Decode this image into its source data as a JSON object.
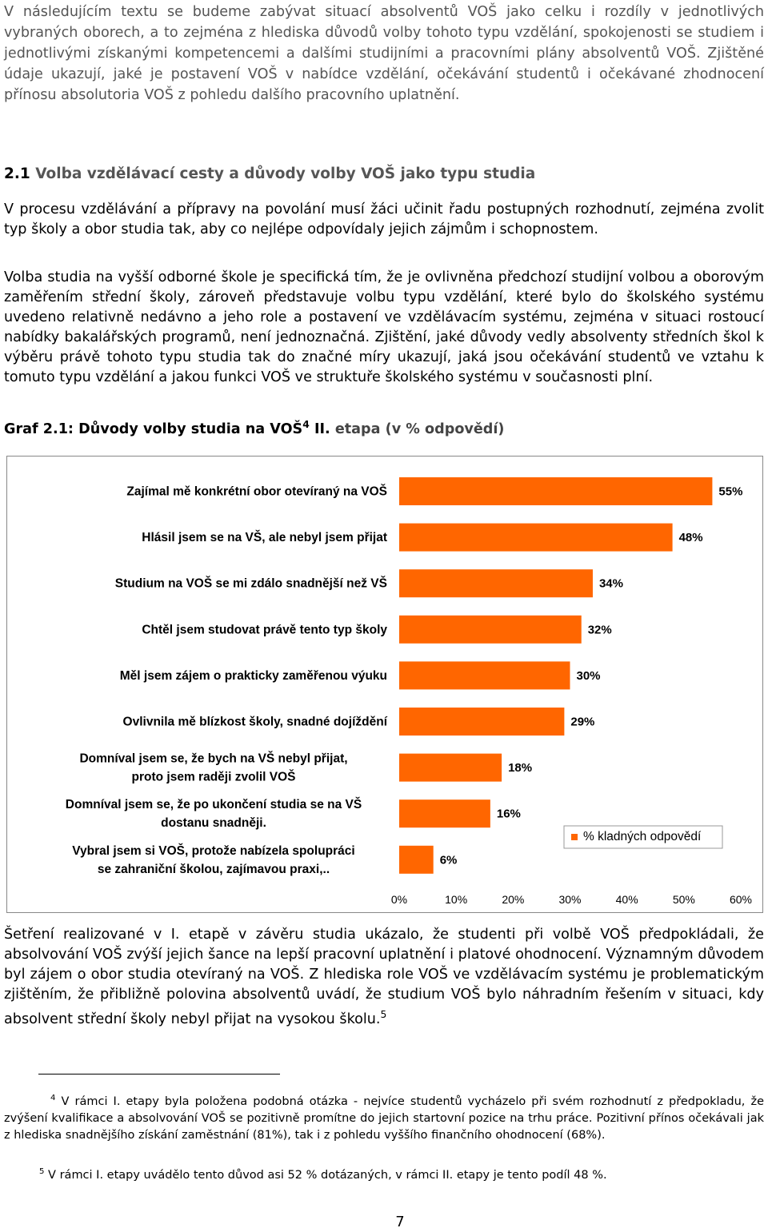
{
  "intro": "V následujícím textu se budeme zabývat situací absolventů VOŠ jako celku i rozdíly v jednotlivých vybraných oborech, a to zejména z hlediska důvodů volby tohoto typu vzdělání, spokojenosti se studiem i jednotlivými získanými kompetencemi a dalšími studijními a pracovními plány absolventů VOŠ. Zjištěné údaje ukazují, jaké je postavení VOŠ v nabídce vzdělání, očekávání studentů i očekávané zhodnocení přínosu absolutoria VOŠ z pohledu dalšího pracovního uplatnění.",
  "section": {
    "number": "2.1",
    "title": "Volba vzdělávací cesty a důvody volby VOŠ jako typu studia"
  },
  "para1": "V procesu vzdělávání a přípravy na povolání musí žáci učinit řadu postupných rozhodnutí, zejména zvolit typ školy a obor studia tak, aby co nejlépe odpovídaly jejich zájmům i schopnostem.",
  "para2": "Volba studia na vyšší odborné škole je specifická tím, že je ovlivněna předchozí studijní volbou a oborovým zaměřením střední školy, zároveň představuje volbu typu vzdělání, které bylo do školského systému uvedeno relativně nedávno a jeho role a postavení ve vzdělávacím systému, zejména v situaci rostoucí nabídky bakalářských programů, není jednoznačná. Zjištění, jaké důvody vedly absolventy středních škol k výběru právě tohoto typu studia tak do značné míry ukazují, jaká jsou očekávání studentů ve vztahu k tomuto typu vzdělání a jakou funkci VOŠ ve struktuře školského systému v současnosti plní.",
  "graf": {
    "prefix": "Graf 2.1: Důvody volby studia na VOŠ",
    "sup": "4",
    "etapa": " II.",
    "suffix": " etapa (v % odpovědí)"
  },
  "chart_data": {
    "type": "bar",
    "orientation": "horizontal",
    "categories": [
      "Zajímal mě konkrétní obor otevíraný na VOŠ",
      "Hlásil jsem se na VŠ, ale nebyl jsem přijat",
      "Studium na VOŠ se mi zdálo snadnější než VŠ",
      "Chtěl jsem studovat právě tento typ školy",
      "Měl jsem zájem o prakticky zaměřenou výuku",
      "Ovlivnila mě blízkost školy, snadné dojíždění",
      "Domníval jsem se, že bych na VŠ nebyl přijat, proto jsem raději zvolil VOŠ",
      "Domníval jsem se, že po ukončení studia se na VŠ dostanu snadněji.",
      "Vybral jsem si VOŠ, protože nabízela spolupráci se zahraniční školou, zajímavou praxi,.."
    ],
    "series": [
      {
        "name": "% kladných odpovědí",
        "values": [
          55,
          48,
          34,
          32,
          30,
          29,
          18,
          16,
          6
        ]
      }
    ],
    "data_labels": [
      "55%",
      "48%",
      "34%",
      "32%",
      "30%",
      "29%",
      "18%",
      "16%",
      "6%"
    ],
    "xlim": [
      0,
      60
    ],
    "x_ticks": [
      "0%",
      "10%",
      "20%",
      "30%",
      "40%",
      "50%",
      "60%"
    ],
    "legend_position": "bottom-right",
    "grid": false,
    "bar_color": "#ff6600"
  },
  "para3": "Šetření realizované v I. etapě v závěru studia ukázalo, že studenti při volbě VOŠ předpokládali, že absolvování VOŠ zvýší jejich šance na lepší pracovní uplatnění i platové ohodnocení. Významným důvodem byl zájem o obor studia otevíraný na VOŠ. Z hlediska role VOŠ ve vzdělávacím systému je problematickým zjištěním, že přibližně polovina absolventů uvádí, že studium VOŠ bylo náhradním řešením v situaci, kdy absolvent střední školy nebyl přijat na vysokou školu.",
  "para3_sup": "5",
  "footnote4": {
    "mark": "4",
    "text": " V rámci I. etapy byla položena podobná otázka - nejvíce studentů vycházelo při svém rozhodnutí z předpokladu, že zvýšení kvalifikace a absolvování VOŠ se pozitivně promítne do jejich startovní pozice na trhu práce. Pozitivní přínos očekávali jak z hlediska snadnějšího získání zaměstnání (81%), tak i z pohledu vyššího finančního ohodnocení (68%)."
  },
  "footnote5": {
    "mark": "5",
    "text": " V rámci I. etapy uvádělo tento důvod asi 52 % dotázaných, v rámci II. etapy je tento podíl 48 %."
  },
  "page_number": "7"
}
